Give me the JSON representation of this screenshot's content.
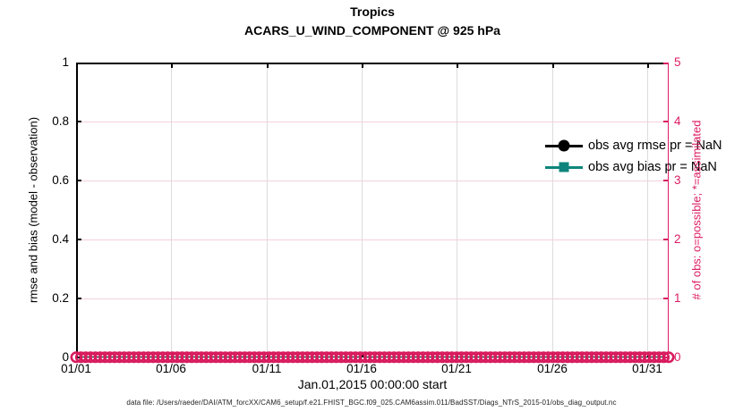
{
  "figure": {
    "caption": "data file: /Users/raeder/DAI/ATM_forcXX/CAM6_setup/f.e21.FHIST_BGC.f09_025.CAM6assim.011/BadSST/Diags_NTrS_2015-01/obs_diag_output.nc"
  },
  "chart_data": {
    "type": "line",
    "title": "Tropics",
    "subtitle": "ACARS_U_WIND_COMPONENT @ 925 hPa",
    "xlabel": "Jan.01,2015 00:00:00 start",
    "ylabel_left": "rmse and bias (model - observation)",
    "ylabel_right": "# of obs: o=possible; *=assimilated",
    "ylim_left": [
      0,
      1
    ],
    "ylim_right": [
      0,
      5
    ],
    "yticks_left": [
      "0",
      "0.2",
      "0.4",
      "0.6",
      "0.8",
      "1"
    ],
    "yticks_right": [
      "0",
      "1",
      "2",
      "3",
      "4",
      "5"
    ],
    "xticks": [
      "01/01",
      "01/06",
      "01/11",
      "01/16",
      "01/21",
      "01/26",
      "01/31"
    ],
    "grid": true,
    "legend_position": "top-right-inside",
    "legend_boxed": false,
    "series": [
      {
        "name": "obs avg rmse pr = NaN",
        "color": "#000000",
        "marker": "filled-circle",
        "axis": "left",
        "values": []
      },
      {
        "name": "obs avg bias pr = NaN",
        "color": "#0f847c",
        "marker": "filled-square",
        "axis": "left",
        "values": []
      },
      {
        "name": "possible observations",
        "color": "#d81b5e",
        "marker": "open-circle",
        "axis": "right",
        "constant_value": 0,
        "num_points": 124
      }
    ],
    "colors": {
      "right_axis": "#dc1c63",
      "marker_pink": "#d81b5e",
      "teal": "#0f847c",
      "h_grid": "#f5d0de",
      "v_grid": "#dcdcdc",
      "spine": "#000000"
    }
  }
}
